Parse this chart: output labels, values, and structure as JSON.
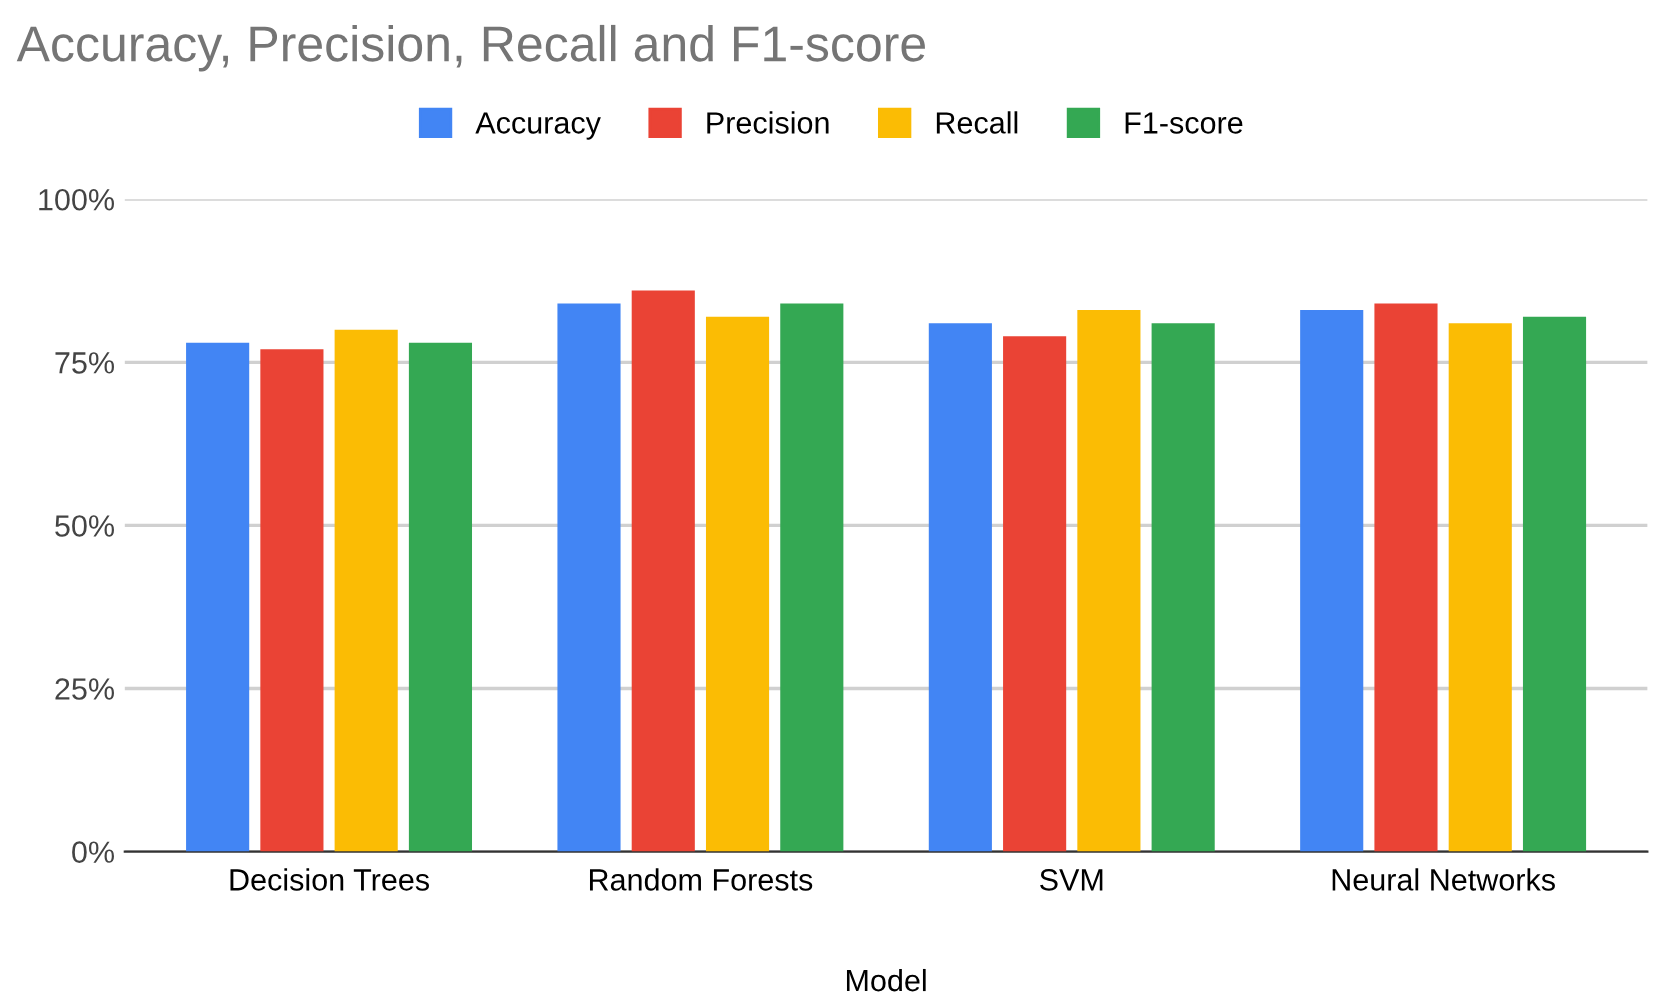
{
  "chart_data": {
    "type": "bar",
    "title": "Accuracy, Precision, Recall and F1-score",
    "xlabel": "Model",
    "categories": [
      "Decision Trees",
      "Random Forests",
      "SVM",
      "Neural Networks"
    ],
    "series": [
      {
        "name": "Accuracy",
        "color": "#4285f4",
        "values": [
          78,
          84,
          81,
          83
        ]
      },
      {
        "name": "Precision",
        "color": "#ea4335",
        "values": [
          77,
          86,
          79,
          84
        ]
      },
      {
        "name": "Recall",
        "color": "#fbbc04",
        "values": [
          80,
          82,
          83,
          81
        ]
      },
      {
        "name": "F1-score",
        "color": "#34a853",
        "values": [
          78,
          84,
          81,
          82
        ]
      }
    ],
    "ylim": [
      0,
      100
    ],
    "yticks": [
      {
        "value": 0,
        "label": "0%"
      },
      {
        "value": 25,
        "label": "25%"
      },
      {
        "value": 50,
        "label": "50%"
      },
      {
        "value": 75,
        "label": "75%"
      },
      {
        "value": 100,
        "label": "100%"
      }
    ],
    "grid": "y",
    "legend": "top"
  }
}
